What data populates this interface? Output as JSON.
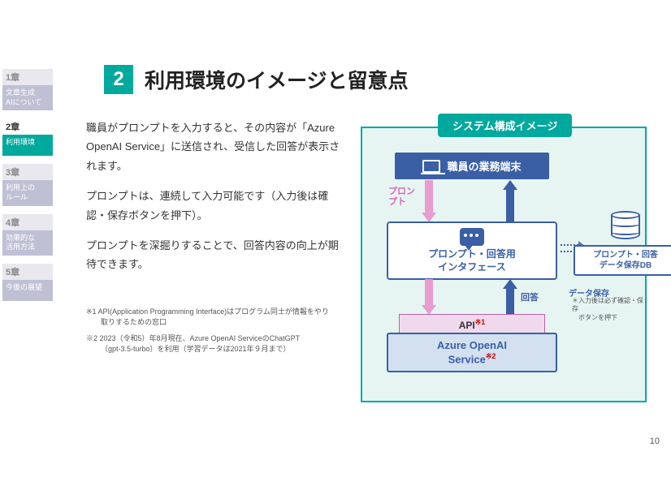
{
  "sidebar": {
    "items": [
      {
        "chapter": "1章",
        "label": "文章生成\nAIについて",
        "active": false
      },
      {
        "chapter": "2章",
        "label": "利用環境",
        "active": true
      },
      {
        "chapter": "3章",
        "label": "利用上の\nルール",
        "active": false
      },
      {
        "chapter": "4章",
        "label": "効果的な\n活用方法",
        "active": false
      },
      {
        "chapter": "5章",
        "label": "今後の展望",
        "active": false
      }
    ]
  },
  "title": {
    "num": "2",
    "text": "利用環境のイメージと留意点"
  },
  "body": {
    "p1": "職員がプロンプトを入力すると、その内容が「Azure OpenAI Service」に送信され、受信した回答が表示されます。",
    "p2": "プロンプトは、連続して入力可能です（入力後は確認・保存ボタンを押下）。",
    "p3": "プロンプトを深掘りすることで、回答内容の向上が期待できます。"
  },
  "footnotes": {
    "f1a": "※1  API(Application Programming Interface)はプログラム同士が情報をやり",
    "f1b": "取りするための窓口",
    "f2a": "※2  2023（令和5）年8月現在、Azure OpenAI ServiceのChatGPT",
    "f2b": "（gpt-3.5-turbo）を利用（学習データは2021年９月まで）"
  },
  "diagram": {
    "title": "システム構成イメージ",
    "terminal": "職員の業務端末",
    "prompt_label": "プロン\nプト",
    "interface_label": "プロンプト・回答用\nインタフェース",
    "answer_label": "回答",
    "api_label": "API",
    "api_sup": "※1",
    "azure_label": "Azure OpenAI\nService",
    "azure_sup": "※2",
    "db_label": "プロンプト・回答\nデータ保存DB",
    "data_save": "データ保存",
    "data_save_note": "＊入力後は必ず確認・保存\n　ボタンを押下",
    "colors": {
      "accent": "#00a99d",
      "blue": "#3a5fa5",
      "pink": "#e89ccf",
      "pink_text": "#d867b5",
      "api_fill": "#f0d9ec",
      "azure_fill": "#d2e0f0",
      "frame_bg": "#e6f5f2"
    }
  },
  "page_number": "10"
}
